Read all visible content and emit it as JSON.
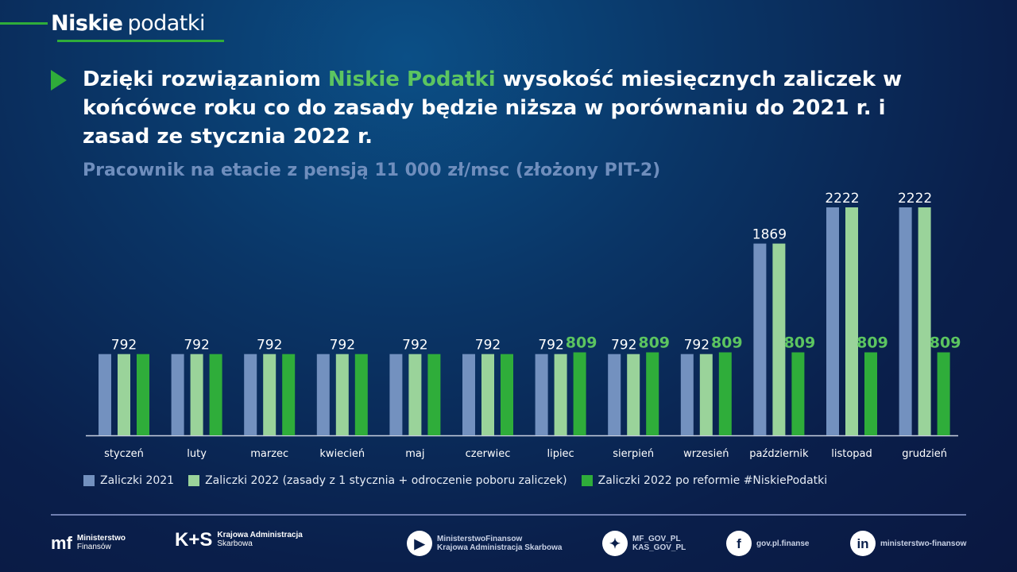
{
  "brand": {
    "bold": "Niskie",
    "light": "podatki"
  },
  "title": {
    "part1": "Dzięki rozwiązaniom ",
    "highlight": "Niskie Podatki",
    "part2": " wysokość miesięcznych zaliczek w końcówce roku co do zasady będzie niższa w porównaniu do 2021 r. i zasad ze stycznia 2022 r."
  },
  "subtitle": "Pracownik na etacie z pensją 11 000 zł/msc (złożony PIT-2)",
  "colors": {
    "s2021": "#7391bf",
    "s2022": "#9ad39a",
    "reform": "#2fad3a",
    "accent": "#5cc560"
  },
  "chart_data": {
    "type": "bar",
    "categories": [
      "styczeń",
      "luty",
      "marzec",
      "kwiecień",
      "maj",
      "czerwiec",
      "lipiec",
      "sierpień",
      "wrzesień",
      "październik",
      "listopad",
      "grudzień"
    ],
    "series": [
      {
        "name": "Zaliczki 2021",
        "values": [
          792,
          792,
          792,
          792,
          792,
          792,
          792,
          792,
          792,
          1869,
          2222,
          2222
        ]
      },
      {
        "name": "Zaliczki 2022 (zasady z 1 stycznia + odroczenie poboru zaliczek)",
        "values": [
          792,
          792,
          792,
          792,
          792,
          792,
          792,
          792,
          792,
          1869,
          2222,
          2222
        ]
      },
      {
        "name": "Zaliczki 2022 po reformie #NiskiePodatki",
        "values": [
          792,
          792,
          792,
          792,
          792,
          792,
          809,
          809,
          809,
          809,
          809,
          809
        ]
      }
    ],
    "data_labels": [
      {
        "group": "792"
      },
      {
        "group": "792"
      },
      {
        "group": "792"
      },
      {
        "group": "792"
      },
      {
        "group": "792"
      },
      {
        "group": "792"
      },
      {
        "pair": "792",
        "reform": "809"
      },
      {
        "pair": "792",
        "reform": "809"
      },
      {
        "pair": "792",
        "reform": "809"
      },
      {
        "pair": "1869",
        "reform": "809"
      },
      {
        "pair": "2222",
        "reform": "809"
      },
      {
        "pair": "2222",
        "reform": "809"
      }
    ],
    "ylim": [
      0,
      2222
    ],
    "legend_position": "bottom"
  },
  "footer": {
    "mf": [
      "Ministerstwo",
      "Finansów"
    ],
    "kas": [
      "Krajowa Administracja",
      "Skarbowa"
    ],
    "youtube": [
      "MinisterstwoFinansow",
      "Krajowa Administracja Skarbowa"
    ],
    "twitter": [
      "MF_GOV_PL",
      "KAS_GOV_PL"
    ],
    "facebook": "gov.pl.finanse",
    "linkedin": "ministerstwo-finansow"
  }
}
